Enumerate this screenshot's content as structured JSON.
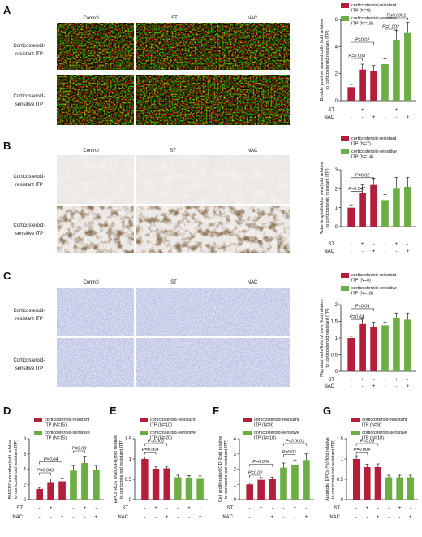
{
  "colors": {
    "resistant": "#b51e3b",
    "sensitive": "#6cae44",
    "axis": "#222222"
  },
  "figure": {
    "column_headers": [
      "Control",
      "ST",
      "NAC"
    ],
    "row_labels": [
      "Corticosteroid-resistant ITP",
      "Corticosteroid-sensitive ITP"
    ],
    "row_labels_short": {
      "top": "Corticosteroid-",
      "top2": "resistant ITP",
      "bot": "Corticosteroid-",
      "bot2": "sensitive ITP"
    },
    "panels": [
      {
        "letter": "A",
        "image_theme": "immunofluorescence"
      },
      {
        "letter": "B",
        "image_theme": "tube-formation"
      },
      {
        "letter": "C",
        "image_theme": "migration"
      },
      {
        "letter": "D"
      },
      {
        "letter": "E"
      },
      {
        "letter": "F"
      },
      {
        "letter": "G"
      }
    ],
    "treatment_rows": [
      "ST",
      "NAC"
    ],
    "treatment_signs": {
      "ST": [
        "-",
        "+",
        "-",
        "-",
        "+",
        "-"
      ],
      "NAC": [
        "-",
        "-",
        "+",
        "-",
        "-",
        "+"
      ]
    }
  },
  "chart_data": [
    {
      "panel": "A",
      "type": "bar",
      "ylabel": "Double positive stained cells (fold relative to corticosteroid resistant ITP)",
      "ylim": [
        0,
        6
      ],
      "yticks": [
        0,
        2,
        4,
        6
      ],
      "series": [
        {
          "name": "corticosteroid-resistant ITP (N=9)",
          "group": "resistant",
          "values": [
            1.0,
            2.3,
            2.2
          ],
          "errors": [
            0.2,
            0.4,
            0.4
          ]
        },
        {
          "name": "corticosteroid-sensitive ITP (N=18)",
          "group": "sensitive",
          "values": [
            2.7,
            4.5,
            5.0
          ],
          "errors": [
            0.4,
            0.7,
            0.8
          ]
        }
      ],
      "annotations": [
        "P=0.004",
        "P=0.02",
        "P=0.002",
        "P<0.0001"
      ]
    },
    {
      "panel": "B",
      "type": "bar",
      "ylabel": "Tube length/field of view(fold relative to corticosteroid resistant ITP)",
      "ylim": [
        0,
        3
      ],
      "yticks": [
        0,
        1,
        2,
        3
      ],
      "series": [
        {
          "name": "corticosteroid-resistant ITP (N=7)",
          "group": "resistant",
          "values": [
            1.0,
            1.8,
            2.2
          ],
          "errors": [
            0.15,
            0.4,
            0.35
          ]
        },
        {
          "name": "corticosteroid-sensitive ITP (N=14)",
          "group": "sensitive",
          "values": [
            1.4,
            2.0,
            2.1
          ],
          "errors": [
            0.3,
            0.6,
            0.5
          ]
        }
      ],
      "annotations": [
        "P=0.047",
        "P=0.02"
      ]
    },
    {
      "panel": "C",
      "type": "bar",
      "ylabel": "Migrated cells/field of view (fold relative to corticosteroid resistant ITP)",
      "ylim": [
        0,
        2.0
      ],
      "yticks": [
        0,
        0.5,
        1.0,
        1.5,
        2.0
      ],
      "series": [
        {
          "name": "corticosteroid-resistant ITP (N=8)",
          "group": "resistant",
          "values": [
            1.0,
            1.42,
            1.33
          ],
          "errors": [
            0.05,
            0.15,
            0.15
          ]
        },
        {
          "name": "corticosteroid-sensitive ITP (N=16)",
          "group": "sensitive",
          "values": [
            1.38,
            1.6,
            1.55
          ],
          "errors": [
            0.1,
            0.15,
            0.2
          ]
        }
      ],
      "annotations": [
        "P=0.04",
        "P=0.04"
      ]
    },
    {
      "panel": "D",
      "type": "bar",
      "ylabel": "BM EPCs number(fold relative to corticosteroid resistant ITP)",
      "ylim": [
        0,
        8
      ],
      "yticks": [
        0,
        2,
        4,
        6,
        8
      ],
      "series": [
        {
          "name": "corticosteroid-resistant ITP (N=15)",
          "group": "resistant",
          "values": [
            1.4,
            2.3,
            2.4
          ],
          "errors": [
            0.2,
            0.4,
            0.4
          ]
        },
        {
          "name": "corticosteroid-sensitive ITP (N=15)",
          "group": "sensitive",
          "values": [
            3.8,
            4.8,
            3.9
          ],
          "errors": [
            0.7,
            0.9,
            0.6
          ]
        }
      ],
      "annotations": [
        "P=0.003",
        "P=0.04",
        "P=0.03"
      ]
    },
    {
      "panel": "E",
      "type": "bar",
      "ylabel": "EPCs ROS level(MFI)(fold relative to corticosteroid resistant ITP)",
      "ylim": [
        0,
        1.5
      ],
      "yticks": [
        0,
        0.5,
        1.0,
        1.5
      ],
      "series": [
        {
          "name": "corticosteroid-resistant ITP (N=10)",
          "group": "resistant",
          "values": [
            1.0,
            0.76,
            0.77
          ],
          "errors": [
            0.05,
            0.06,
            0.05
          ]
        },
        {
          "name": "corticosteroid-sensitive ITP (N=20)",
          "group": "sensitive",
          "values": [
            0.55,
            0.54,
            0.53
          ],
          "errors": [
            0.05,
            0.05,
            0.05
          ]
        }
      ],
      "annotations": [
        "P=0.004",
        "P=0.002"
      ]
    },
    {
      "panel": "F",
      "type": "bar",
      "ylabel": "Cell proliferation(OD)(fold relative to corticosteroid resistant ITP)",
      "ylim": [
        0,
        4
      ],
      "yticks": [
        0,
        1,
        2,
        3,
        4
      ],
      "series": [
        {
          "name": "corticosteroid-resistant ITP (N=9)",
          "group": "resistant",
          "values": [
            1.0,
            1.3,
            1.35
          ],
          "errors": [
            0.1,
            0.15,
            0.12
          ]
        },
        {
          "name": "corticosteroid-sensitive ITP (N=18)",
          "group": "sensitive",
          "values": [
            2.1,
            2.3,
            2.6
          ],
          "errors": [
            0.3,
            0.3,
            0.4
          ]
        }
      ],
      "annotations": [
        "P=0.02",
        "P=0.004",
        "P=0.01",
        "P<0.0001"
      ]
    },
    {
      "panel": "G",
      "type": "bar",
      "ylabel": "Apoptotic EPCs (%)(fold relative to corticosteroid resistant ITP)",
      "ylim": [
        0,
        1.5
      ],
      "yticks": [
        0,
        0.5,
        1.0,
        1.5
      ],
      "series": [
        {
          "name": "corticosteroid-resistant ITP (N=9)",
          "group": "resistant",
          "values": [
            1.0,
            0.8,
            0.8
          ],
          "errors": [
            0.08,
            0.07,
            0.08
          ]
        },
        {
          "name": "corticosteroid-sensitive ITP (N=18)",
          "group": "sensitive",
          "values": [
            0.55,
            0.55,
            0.55
          ],
          "errors": [
            0.05,
            0.05,
            0.05
          ]
        }
      ],
      "annotations": [
        "P=0.004",
        "P=0.03"
      ]
    }
  ]
}
